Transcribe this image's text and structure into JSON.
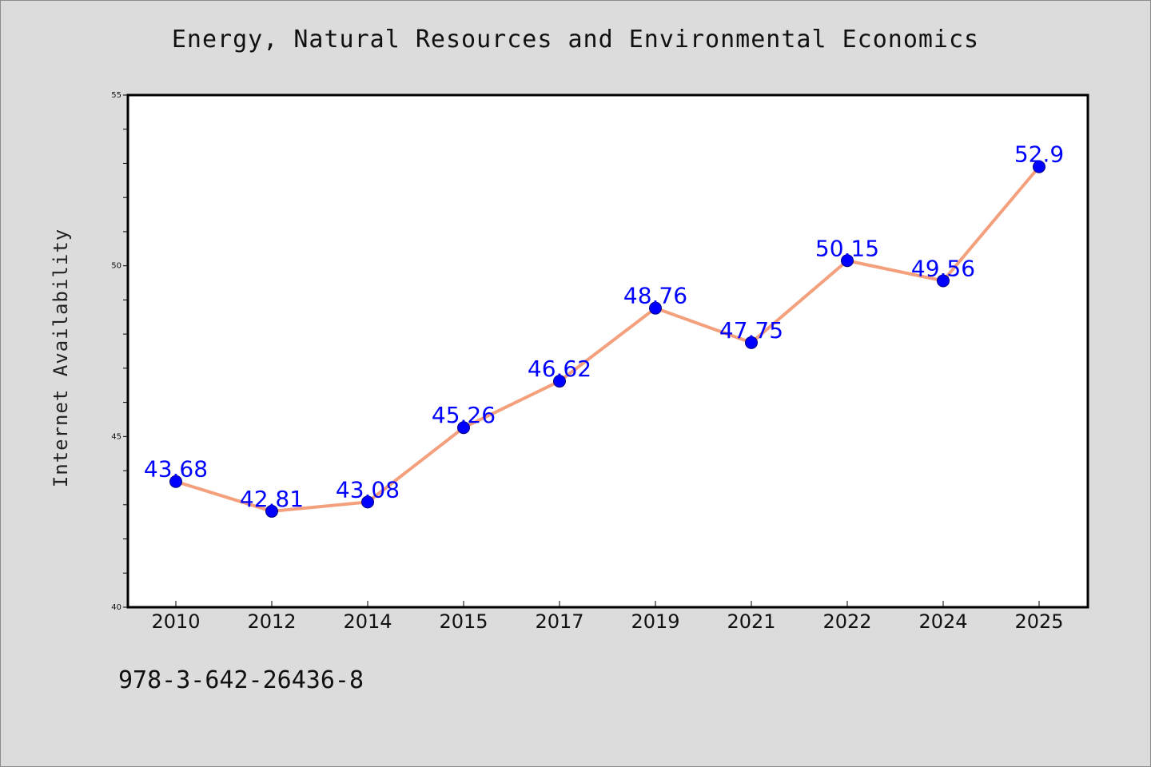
{
  "colors": {
    "background": "#dcdcdc",
    "plot_background": "#ffffff",
    "line": "#f4a07c",
    "marker": "#0000ff",
    "data_label": "#0000ff"
  },
  "footer": {
    "isbn": "978-3-642-26436-8"
  },
  "chart_data": {
    "type": "line",
    "title": "Energy, Natural Resources and Environmental Economics",
    "xlabel": "",
    "ylabel": "Internet Availability",
    "categories": [
      "2010",
      "2012",
      "2014",
      "2015",
      "2017",
      "2019",
      "2021",
      "2022",
      "2024",
      "2025"
    ],
    "series": [
      {
        "values": [
          43.68,
          42.81,
          43.08,
          45.26,
          46.62,
          48.76,
          47.75,
          50.15,
          49.56,
          52.9
        ],
        "data_labels": [
          "43.68",
          "42.81",
          "43.08",
          "45.26",
          "46.62",
          "48.76",
          "47.75",
          "50.15",
          "49.56",
          "52.9"
        ]
      }
    ],
    "ylim": [
      40,
      55
    ],
    "yticks": [
      40,
      45,
      50,
      55
    ],
    "y_minor_step": 1,
    "grid": false,
    "legend": "none"
  }
}
